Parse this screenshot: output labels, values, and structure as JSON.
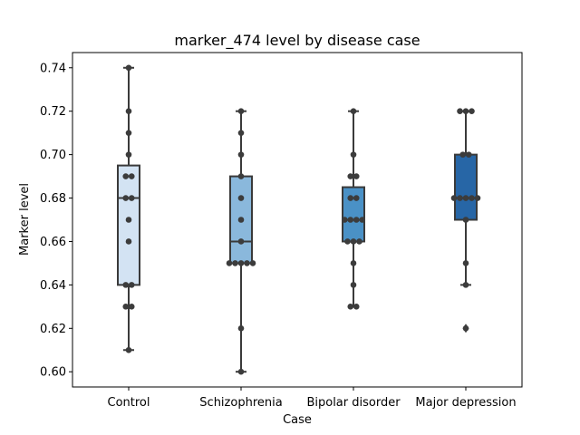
{
  "chart_data": {
    "type": "boxplot",
    "title": "marker_474 level by disease case",
    "xlabel": "Case",
    "ylabel": "Marker level",
    "ylim": [
      0.593,
      0.747
    ],
    "yticks": [
      0.6,
      0.62,
      0.64,
      0.66,
      0.68,
      0.7,
      0.72,
      0.74
    ],
    "grid": false,
    "categories": [
      "Control",
      "Schizophrenia",
      "Bipolar disorder",
      "Major depression"
    ],
    "colors": [
      "#d3e3f3",
      "#8ab8dc",
      "#4a91c6",
      "#2766a6"
    ],
    "point_color": "#3c3c3c",
    "line_color": "#3a3a3a",
    "groups": [
      {
        "name": "Control",
        "box": {
          "whisker_low": 0.61,
          "q1": 0.64,
          "median": 0.68,
          "q3": 0.695,
          "whisker_high": 0.74
        },
        "outliers": [],
        "points": [
          0.74,
          0.72,
          0.71,
          0.7,
          0.69,
          0.69,
          0.68,
          0.68,
          0.67,
          0.66,
          0.64,
          0.64,
          0.63,
          0.63,
          0.61
        ]
      },
      {
        "name": "Schizophrenia",
        "box": {
          "whisker_low": 0.6,
          "q1": 0.65,
          "median": 0.66,
          "q3": 0.69,
          "whisker_high": 0.72
        },
        "outliers": [],
        "points": [
          0.72,
          0.71,
          0.7,
          0.69,
          0.68,
          0.67,
          0.66,
          0.65,
          0.65,
          0.65,
          0.65,
          0.65,
          0.62,
          0.6
        ]
      },
      {
        "name": "Bipolar disorder",
        "box": {
          "whisker_low": 0.63,
          "q1": 0.66,
          "median": 0.67,
          "q3": 0.685,
          "whisker_high": 0.72
        },
        "outliers": [],
        "points": [
          0.72,
          0.7,
          0.69,
          0.69,
          0.68,
          0.68,
          0.67,
          0.67,
          0.67,
          0.67,
          0.66,
          0.66,
          0.66,
          0.65,
          0.64,
          0.63,
          0.63
        ]
      },
      {
        "name": "Major depression",
        "box": {
          "whisker_low": 0.64,
          "q1": 0.67,
          "median": 0.68,
          "q3": 0.7,
          "whisker_high": 0.72
        },
        "outliers": [
          0.62
        ],
        "points": [
          0.72,
          0.72,
          0.72,
          0.7,
          0.7,
          0.68,
          0.68,
          0.68,
          0.68,
          0.68,
          0.67,
          0.65,
          0.64,
          0.62
        ]
      }
    ]
  }
}
